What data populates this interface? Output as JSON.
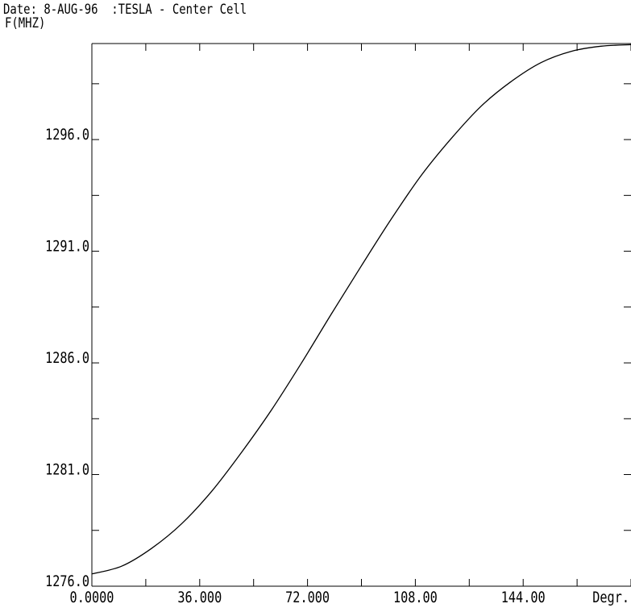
{
  "header": {
    "date_line": "Date: 8-AUG-96  :TESLA - Center Cell",
    "ylabel": "F(MHZ)"
  },
  "chart_data": {
    "type": "line",
    "title": "TESLA - Center Cell",
    "date": "8-AUG-96",
    "xlabel": "Degr.",
    "ylabel": "F(MHZ)",
    "xlim": [
      0,
      180
    ],
    "ylim": [
      1276.0,
      1300.3
    ],
    "x_ticks": [
      0,
      36,
      72,
      108,
      144
    ],
    "x_tick_labels": [
      "0.0000",
      "36.000",
      "72.000",
      "108.00",
      "144.00"
    ],
    "y_ticks": [
      1276,
      1281,
      1286,
      1291,
      1296
    ],
    "y_tick_labels": [
      "1276.0",
      "1281.0",
      "1286.0",
      "1291.0",
      "1296.0"
    ],
    "grid": false,
    "series": [
      {
        "x": [
          0,
          10,
          20,
          30,
          40,
          50,
          60,
          70,
          80,
          90,
          100,
          110,
          120,
          130,
          140,
          150,
          160,
          170,
          180
        ],
        "y": [
          1276.55,
          1276.9,
          1277.7,
          1278.8,
          1280.25,
          1282.0,
          1283.9,
          1286.0,
          1288.2,
          1290.35,
          1292.45,
          1294.4,
          1296.05,
          1297.5,
          1298.6,
          1299.45,
          1299.95,
          1300.18,
          1300.25
        ]
      }
    ]
  }
}
